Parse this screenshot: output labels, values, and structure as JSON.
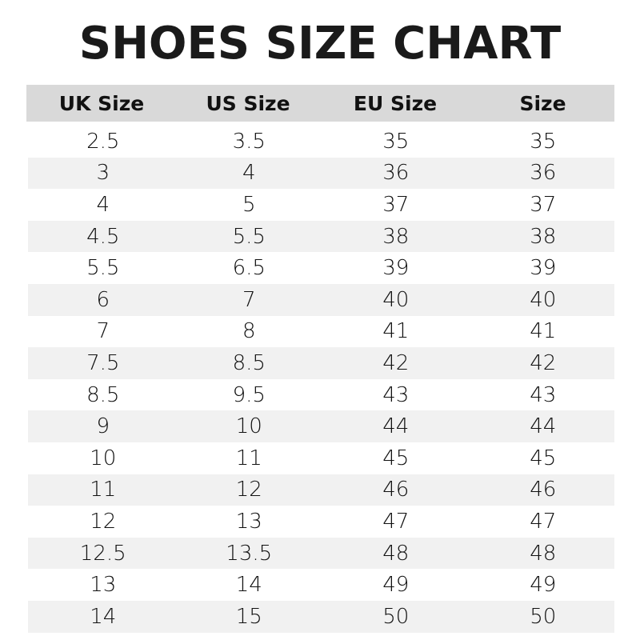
{
  "title": "SHOES SIZE CHART",
  "headers": [
    "UK Size",
    "US Size",
    "EU Size",
    "Size"
  ],
  "rows": [
    [
      "2.5",
      "3.5",
      "35",
      "35"
    ],
    [
      "3",
      "4",
      "36",
      "36"
    ],
    [
      "4",
      "5",
      "37",
      "37"
    ],
    [
      "4.5",
      "5.5",
      "38",
      "38"
    ],
    [
      "5.5",
      "6.5",
      "39",
      "39"
    ],
    [
      "6",
      "7",
      "40",
      "40"
    ],
    [
      "7",
      "8",
      "41",
      "41"
    ],
    [
      "7.5",
      "8.5",
      "42",
      "42"
    ],
    [
      "8.5",
      "9.5",
      "43",
      "43"
    ],
    [
      "9",
      "10",
      "44",
      "44"
    ],
    [
      "10",
      "11",
      "45",
      "45"
    ],
    [
      "11",
      "12",
      "46",
      "46"
    ],
    [
      "12",
      "13",
      "47",
      "47"
    ],
    [
      "12.5",
      "13.5",
      "48",
      "48"
    ],
    [
      "13",
      "14",
      "49",
      "49"
    ],
    [
      "14",
      "15",
      "50",
      "50"
    ]
  ],
  "colors": {
    "header_bg": "#d9d9d9",
    "stripe_bg": "#f1f1f1"
  }
}
